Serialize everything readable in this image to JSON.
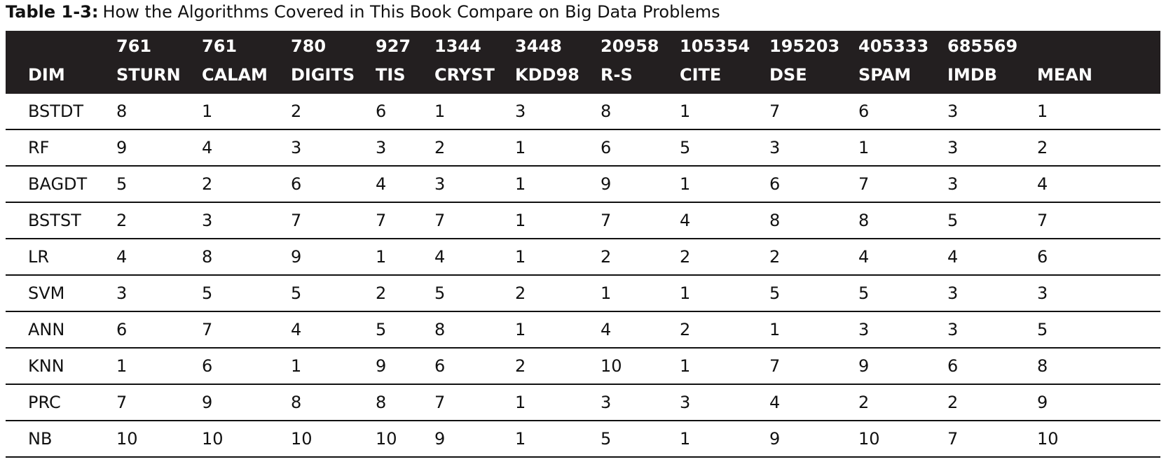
{
  "caption": {
    "label": "Table 1-3:",
    "title": "How the Algorithms Covered in This Book Compare on Big Data Problems"
  },
  "table": {
    "columns": [
      {
        "n": "",
        "h": "DIM"
      },
      {
        "n": "761",
        "h": "STURN"
      },
      {
        "n": "761",
        "h": "CALAM"
      },
      {
        "n": "780",
        "h": "DIGITS"
      },
      {
        "n": "927",
        "h": "TIS"
      },
      {
        "n": "1344",
        "h": "CRYST"
      },
      {
        "n": "3448",
        "h": "KDD98"
      },
      {
        "n": "20958",
        "h": "R-S"
      },
      {
        "n": "105354",
        "h": "CITE"
      },
      {
        "n": "195203",
        "h": "DSE"
      },
      {
        "n": "405333",
        "h": "SPAM"
      },
      {
        "n": "685569",
        "h": "IMDB"
      },
      {
        "n": "",
        "h": "MEAN"
      }
    ],
    "rows": [
      [
        "BSTDT",
        "8",
        "1",
        "2",
        "6",
        "1",
        "3",
        "8",
        "1",
        "7",
        "6",
        "3",
        "1"
      ],
      [
        "RF",
        "9",
        "4",
        "3",
        "3",
        "2",
        "1",
        "6",
        "5",
        "3",
        "1",
        "3",
        "2"
      ],
      [
        "BAGDT",
        "5",
        "2",
        "6",
        "4",
        "3",
        "1",
        "9",
        "1",
        "6",
        "7",
        "3",
        "4"
      ],
      [
        "BSTST",
        "2",
        "3",
        "7",
        "7",
        "7",
        "1",
        "7",
        "4",
        "8",
        "8",
        "5",
        "7"
      ],
      [
        "LR",
        "4",
        "8",
        "9",
        "1",
        "4",
        "1",
        "2",
        "2",
        "2",
        "4",
        "4",
        "6"
      ],
      [
        "SVM",
        "3",
        "5",
        "5",
        "2",
        "5",
        "2",
        "1",
        "1",
        "5",
        "5",
        "3",
        "3"
      ],
      [
        "ANN",
        "6",
        "7",
        "4",
        "5",
        "8",
        "1",
        "4",
        "2",
        "1",
        "3",
        "3",
        "5"
      ],
      [
        "KNN",
        "1",
        "6",
        "1",
        "9",
        "6",
        "2",
        "10",
        "1",
        "7",
        "9",
        "6",
        "8"
      ],
      [
        "PRC",
        "7",
        "9",
        "8",
        "8",
        "7",
        "1",
        "3",
        "3",
        "4",
        "2",
        "2",
        "9"
      ],
      [
        "NB",
        "10",
        "10",
        "10",
        "10",
        "9",
        "1",
        "5",
        "1",
        "9",
        "10",
        "7",
        "10"
      ]
    ]
  }
}
